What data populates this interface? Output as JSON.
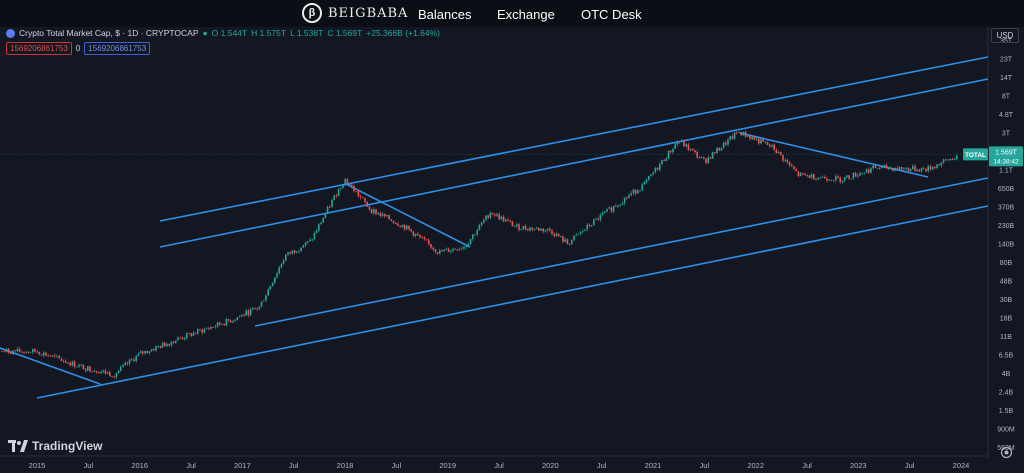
{
  "site": {
    "brand": "BEIGBABA",
    "nav": [
      "Balances",
      "Exchange",
      "OTC Desk"
    ]
  },
  "chart_header": {
    "symbol": "Crypto Total Market Cap, $ · 1D · CRYPTOCAP",
    "open": "O 1.544T",
    "high": "H 1.575T",
    "low": "L 1.538T",
    "close": "C 1.569T",
    "change": "+25.366B (+1.64%)",
    "badge_red": "1569206861753",
    "badge_sep": "0",
    "badge_blue": "1569206861753",
    "currency": "USD"
  },
  "price_tag": {
    "label": "TOTAL",
    "value": "1.569T",
    "countdown": "14:38:42"
  },
  "footer": {
    "tv_label": "TradingView"
  },
  "colors": {
    "up": "#26a69a",
    "down": "#ef5350",
    "line": "#2f8fe6",
    "bg": "#131722"
  },
  "chart_data": {
    "type": "candlestick",
    "title": "Crypto Total Market Cap, $ · 1D · CRYPTOCAP",
    "y_ticks": [
      "35T",
      "23T",
      "14T",
      "8T",
      "4.8T",
      "3T",
      "1.8T",
      "1.1T",
      "650B",
      "370B",
      "230B",
      "140B",
      "80B",
      "48B",
      "30B",
      "18B",
      "11B",
      "6.5B",
      "4B",
      "2.4B",
      "1.5B",
      "900M",
      "560M"
    ],
    "x_ticks": [
      "2015",
      "Jul",
      "2016",
      "Jul",
      "2017",
      "Jul",
      "2018",
      "Jul",
      "2019",
      "Jul",
      "2020",
      "Jul",
      "2021",
      "Jul",
      "2022",
      "Jul",
      "2023",
      "Jul",
      "2024"
    ],
    "y_scale": "log",
    "current_value": "1.569T",
    "price_path": [
      [
        "2015-01",
        0.0075
      ],
      [
        "2015-06",
        0.005
      ],
      [
        "2015-10",
        0.004
      ],
      [
        "2016-01",
        0.007
      ],
      [
        "2016-06",
        0.011
      ],
      [
        "2016-12",
        0.018
      ],
      [
        "2017-03",
        0.025
      ],
      [
        "2017-06",
        0.1
      ],
      [
        "2017-09",
        0.15
      ],
      [
        "2017-12",
        0.55
      ],
      [
        "2018-01",
        0.8
      ],
      [
        "2018-04",
        0.35
      ],
      [
        "2018-08",
        0.22
      ],
      [
        "2018-12",
        0.11
      ],
      [
        "2019-03",
        0.13
      ],
      [
        "2019-06",
        0.33
      ],
      [
        "2019-09",
        0.22
      ],
      [
        "2020-01",
        0.2
      ],
      [
        "2020-03",
        0.14
      ],
      [
        "2020-07",
        0.3
      ],
      [
        "2020-12",
        0.7
      ],
      [
        "2021-04",
        2.3
      ],
      [
        "2021-07",
        1.3
      ],
      [
        "2021-11",
        2.9
      ],
      [
        "2022-03",
        1.9
      ],
      [
        "2022-06",
        0.9
      ],
      [
        "2022-11",
        0.8
      ],
      [
        "2023-03",
        1.1
      ],
      [
        "2023-09",
        1.05
      ],
      [
        "2024-01",
        1.569
      ]
    ]
  }
}
